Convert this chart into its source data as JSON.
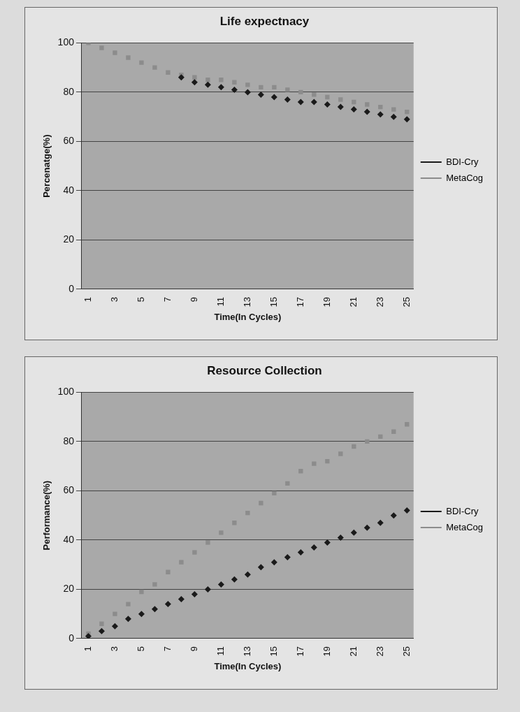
{
  "chart_data": [
    {
      "type": "scatter",
      "title": "Life expectnacy",
      "xlabel": "Time(In Cycles)",
      "ylabel": "Percenatge(%)",
      "categories": [
        "1",
        null,
        "3",
        null,
        "5",
        null,
        "7",
        null,
        "9",
        null,
        "11",
        null,
        "13",
        null,
        "15",
        null,
        "17",
        null,
        "19",
        null,
        "21",
        null,
        "23",
        null,
        "25"
      ],
      "series": [
        {
          "name": "BDI-Cry",
          "color": "#1a1a1a",
          "marker": "diamond",
          "values": [
            null,
            null,
            null,
            null,
            null,
            null,
            null,
            86,
            84,
            83,
            82,
            81,
            80,
            79,
            78,
            77,
            76,
            76,
            75,
            74,
            73,
            72,
            71,
            70,
            69
          ]
        },
        {
          "name": "MetaCog",
          "color": "#8c8c8c",
          "marker": "square",
          "values": [
            100,
            98,
            96,
            94,
            92,
            90,
            88,
            87,
            86,
            85,
            85,
            84,
            83,
            82,
            82,
            81,
            80,
            79,
            78,
            77,
            76,
            75,
            74,
            73,
            72
          ]
        }
      ],
      "ylim": [
        0,
        100
      ],
      "yticks": [
        0,
        20,
        40,
        60,
        80,
        100
      ],
      "grid": "y",
      "legend": "right"
    },
    {
      "type": "scatter",
      "title": "Resource Collection",
      "xlabel": "Time(In Cycles)",
      "ylabel": "Performance(%)",
      "categories": [
        "1",
        null,
        "3",
        null,
        "5",
        null,
        "7",
        null,
        "9",
        null,
        "11",
        null,
        "13",
        null,
        "15",
        null,
        "17",
        null,
        "19",
        null,
        "21",
        null,
        "23",
        null,
        "25"
      ],
      "series": [
        {
          "name": "BDI-Cry",
          "color": "#1a1a1a",
          "marker": "diamond",
          "values": [
            1,
            3,
            5,
            8,
            10,
            12,
            14,
            16,
            18,
            20,
            22,
            24,
            26,
            29,
            31,
            33,
            35,
            37,
            39,
            41,
            43,
            45,
            47,
            50,
            52
          ]
        },
        {
          "name": "MetaCog",
          "color": "#8c8c8c",
          "marker": "square",
          "values": [
            2,
            6,
            10,
            14,
            19,
            22,
            27,
            31,
            35,
            39,
            43,
            47,
            51,
            55,
            59,
            63,
            68,
            71,
            72,
            75,
            78,
            80,
            82,
            84,
            87
          ]
        }
      ],
      "ylim": [
        0,
        100
      ],
      "yticks": [
        0,
        20,
        40,
        60,
        80,
        100
      ],
      "grid": "y",
      "legend": "right"
    }
  ]
}
